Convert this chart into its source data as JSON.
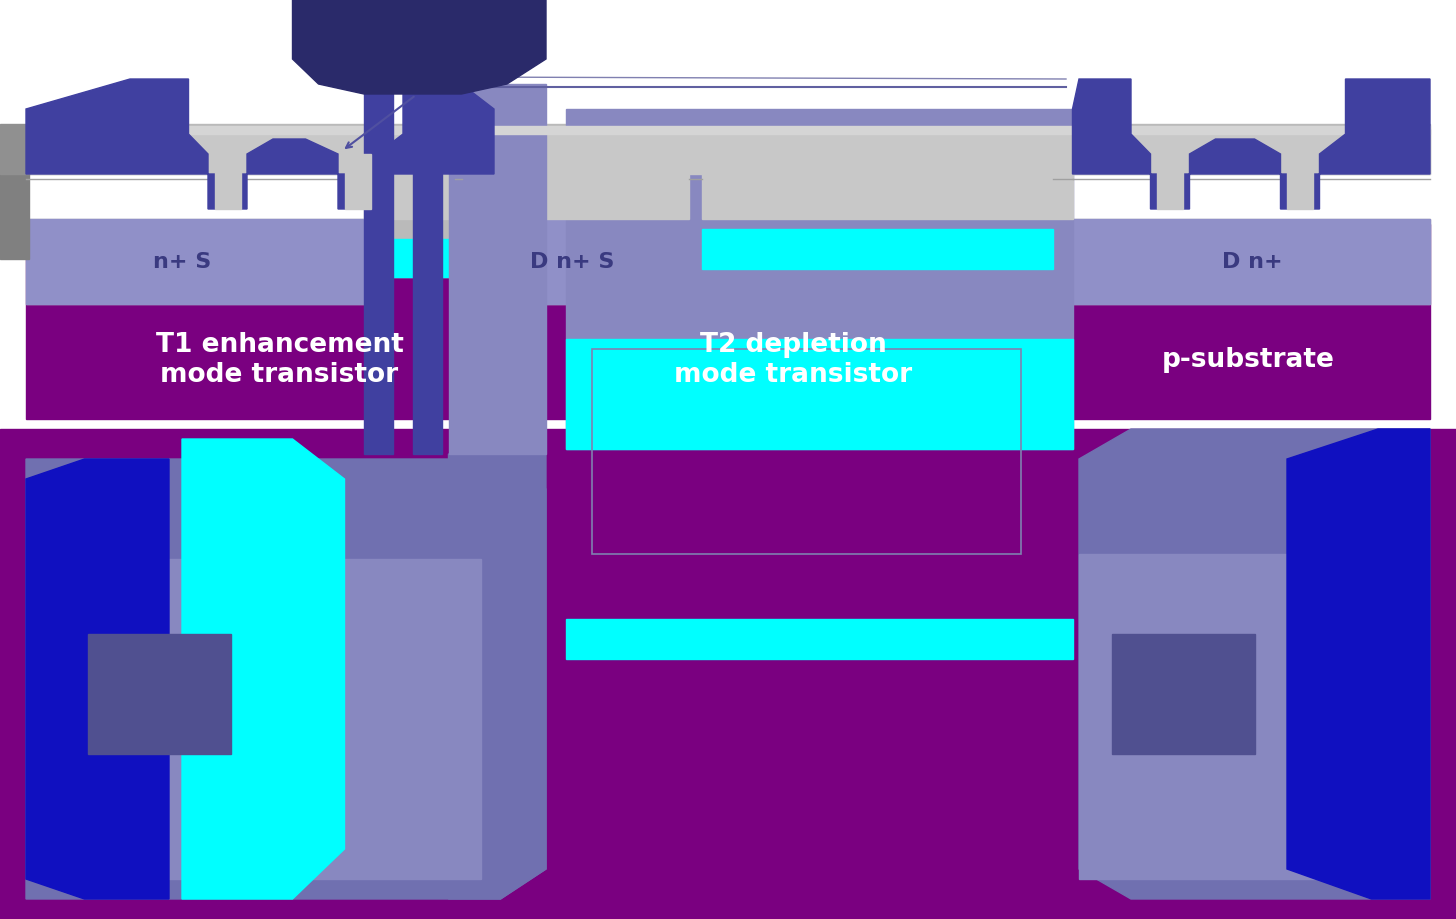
{
  "bg": "#ffffff",
  "p_sub": "#7A0080",
  "n_plus": "#9090C8",
  "cyan": "#00FFFF",
  "metal_gray": "#C8C8C8",
  "light_gray": "#D5D5D5",
  "poly_dark": "#2A2A6A",
  "poly_med": "#4040A0",
  "oxide_gray": "#BABABA",
  "blue_dark": "#1010C0",
  "blue_med": "#0000FF",
  "contact_sq": "#505090",
  "active_light": "#8888C0",
  "active_med": "#7070B0",
  "outline_color": "#8888BB",
  "arrow_color": "#4040A0",
  "label_nplus": "n+ S",
  "label_dn_s": "D n+ S",
  "label_dn": "D n+",
  "label_t1": "T1 enhancement\nmode transistor",
  "label_t2": "T2 depletion\nmode transistor",
  "label_psub": "p-substrate"
}
